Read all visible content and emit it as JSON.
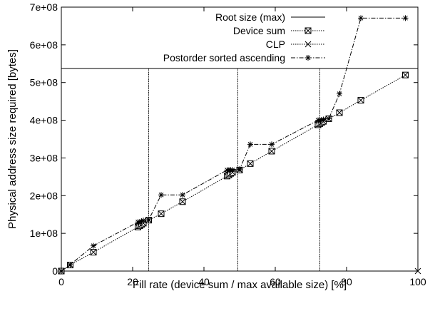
{
  "chart_data": {
    "type": "line",
    "xlabel": "Fill rate (device sum / max available size) [%]",
    "ylabel": "Physical address size required [bytes]",
    "xlim": [
      0,
      100
    ],
    "ylim": [
      0,
      700000000
    ],
    "x_ticks": [
      0,
      20,
      40,
      60,
      80,
      100
    ],
    "x_tick_labels": [
      "0",
      "20",
      "40",
      "60",
      "80",
      "100"
    ],
    "y_ticks": [
      0,
      100000000,
      200000000,
      300000000,
      400000000,
      500000000,
      600000000,
      700000000
    ],
    "y_tick_labels": [
      "0",
      "1e+08",
      "2e+08",
      "3e+08",
      "4e+08",
      "5e+08",
      "6e+08",
      "7e+08"
    ],
    "grid": false,
    "legend_position": "top-right",
    "series": [
      {
        "name": "Root size (max)",
        "style": "solid",
        "marker": "none",
        "x": [
          0,
          100
        ],
        "y": [
          537000000,
          537000000
        ]
      },
      {
        "name": "Device sum",
        "style": "dotted",
        "marker": "boxed-x",
        "x": [
          0,
          2.5,
          9,
          21.5,
          22,
          22.5,
          23,
          24.5,
          28,
          34,
          46.5,
          47,
          47.5,
          48,
          50,
          53,
          59,
          72,
          72.5,
          73,
          73.5,
          75,
          78,
          84,
          96.5
        ],
        "y": [
          0,
          16000000,
          50000000,
          117000000,
          120000000,
          124000000,
          127000000,
          135000000,
          152000000,
          184000000,
          252000000,
          255000000,
          259000000,
          262000000,
          268000000,
          285000000,
          318000000,
          388000000,
          391000000,
          394000000,
          397000000,
          404000000,
          420000000,
          453000000,
          520000000
        ]
      },
      {
        "name": "CLP",
        "style": "dotted",
        "marker": "x",
        "x": [
          0,
          100
        ],
        "y": [
          0,
          0
        ]
      },
      {
        "name": "Postorder sorted ascending",
        "style": "dash-dot",
        "marker": "star",
        "x": [
          0,
          2.5,
          9,
          21.5,
          22,
          22.5,
          23,
          24.5,
          28,
          34,
          46.5,
          47,
          47.5,
          48,
          50,
          53,
          59,
          72,
          72.5,
          73,
          73.5,
          75,
          78,
          84,
          96.5
        ],
        "y": [
          0,
          17000000,
          67000000,
          130000000,
          130000000,
          132000000,
          134000000,
          136000000,
          202000000,
          202000000,
          268000000,
          268000000,
          268000000,
          268000000,
          270000000,
          336000000,
          336000000,
          400000000,
          400000000,
          401000000,
          402000000,
          404000000,
          470000000,
          671000000,
          671000000
        ]
      }
    ],
    "vertical_lines": {
      "style": "dotted",
      "x": [
        24.5,
        49.5,
        72.5
      ]
    }
  }
}
